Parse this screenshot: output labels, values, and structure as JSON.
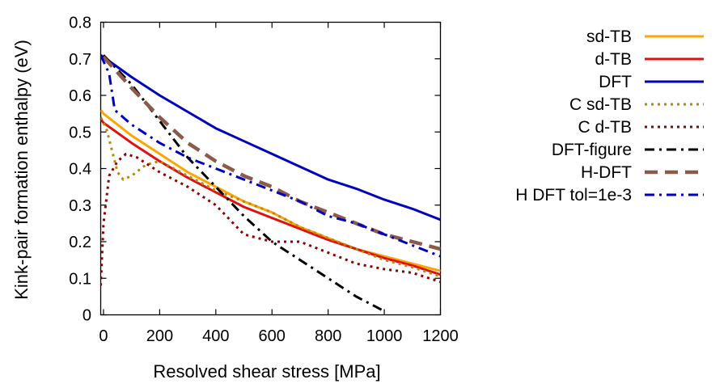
{
  "chart_data": {
    "type": "line",
    "xlabel": "Resolved shear stress [MPa]",
    "ylabel": "Kink-pair formation enthalpy (eV)",
    "xlim": [
      -10,
      1200
    ],
    "ylim": [
      0,
      0.8
    ],
    "xticks": [
      0,
      200,
      400,
      600,
      800,
      1000,
      1200
    ],
    "yticks": [
      0,
      0.1,
      0.2,
      0.3,
      0.4,
      0.5,
      0.6,
      0.7,
      0.8
    ],
    "xtick_labels": [
      "0",
      "200",
      "400",
      "600",
      "800",
      "1000",
      "1200"
    ],
    "ytick_labels": [
      "0",
      "0.1",
      "0.2",
      "0.3",
      "0.4",
      "0.5",
      "0.6",
      "0.7",
      "0.8"
    ],
    "legend_position": "right, outside plot",
    "series": [
      {
        "name": "sd-TB",
        "color": "#ffa500",
        "dash": "solid",
        "width": 3,
        "points": [
          [
            -10,
            0.56
          ],
          [
            0,
            0.55
          ],
          [
            100,
            0.49
          ],
          [
            200,
            0.44
          ],
          [
            300,
            0.39
          ],
          [
            400,
            0.35
          ],
          [
            500,
            0.31
          ],
          [
            600,
            0.28
          ],
          [
            700,
            0.24
          ],
          [
            800,
            0.21
          ],
          [
            900,
            0.18
          ],
          [
            1000,
            0.16
          ],
          [
            1100,
            0.14
          ],
          [
            1200,
            0.12
          ]
        ]
      },
      {
        "name": "d-TB",
        "color": "#e01010",
        "dash": "solid",
        "width": 3,
        "points": [
          [
            -10,
            0.535
          ],
          [
            0,
            0.525
          ],
          [
            100,
            0.47
          ],
          [
            200,
            0.42
          ],
          [
            300,
            0.375
          ],
          [
            400,
            0.335
          ],
          [
            500,
            0.295
          ],
          [
            600,
            0.265
          ],
          [
            700,
            0.235
          ],
          [
            800,
            0.205
          ],
          [
            900,
            0.18
          ],
          [
            1000,
            0.155
          ],
          [
            1100,
            0.135
          ],
          [
            1200,
            0.11
          ]
        ]
      },
      {
        "name": "DFT",
        "color": "#0000c0",
        "dash": "solid",
        "width": 3,
        "points": [
          [
            -10,
            0.71
          ],
          [
            0,
            0.705
          ],
          [
            100,
            0.65
          ],
          [
            200,
            0.6
          ],
          [
            300,
            0.555
          ],
          [
            400,
            0.51
          ],
          [
            500,
            0.475
          ],
          [
            600,
            0.44
          ],
          [
            700,
            0.405
          ],
          [
            800,
            0.37
          ],
          [
            900,
            0.345
          ],
          [
            1000,
            0.315
          ],
          [
            1100,
            0.29
          ],
          [
            1200,
            0.26
          ]
        ]
      },
      {
        "name": "C sd-TB",
        "color": "#b8860b",
        "dash": "dotted",
        "width": 3,
        "points": [
          [
            -10,
            0.54
          ],
          [
            10,
            0.51
          ],
          [
            30,
            0.45
          ],
          [
            50,
            0.39
          ],
          [
            70,
            0.37
          ],
          [
            100,
            0.38
          ],
          [
            150,
            0.41
          ],
          [
            200,
            0.42
          ],
          [
            300,
            0.38
          ],
          [
            400,
            0.34
          ],
          [
            500,
            0.31
          ],
          [
            600,
            0.28
          ],
          [
            700,
            0.24
          ],
          [
            800,
            0.21
          ],
          [
            900,
            0.18
          ],
          [
            1000,
            0.15
          ],
          [
            1100,
            0.13
          ],
          [
            1200,
            0.105
          ]
        ]
      },
      {
        "name": "C d-TB",
        "color": "#8b0000",
        "dash": "dotted",
        "width": 3,
        "points": [
          [
            -10,
            0.08
          ],
          [
            0,
            0.25
          ],
          [
            20,
            0.38
          ],
          [
            50,
            0.42
          ],
          [
            80,
            0.44
          ],
          [
            120,
            0.43
          ],
          [
            200,
            0.39
          ],
          [
            300,
            0.35
          ],
          [
            400,
            0.3
          ],
          [
            450,
            0.26
          ],
          [
            500,
            0.22
          ],
          [
            550,
            0.21
          ],
          [
            600,
            0.2
          ],
          [
            700,
            0.2
          ],
          [
            800,
            0.17
          ],
          [
            900,
            0.14
          ],
          [
            1000,
            0.125
          ],
          [
            1100,
            0.115
          ],
          [
            1200,
            0.09
          ]
        ]
      },
      {
        "name": "DFT-figure",
        "color": "#000000",
        "dash": "dashdot",
        "width": 3,
        "points": [
          [
            0,
            0.71
          ],
          [
            100,
            0.63
          ],
          [
            200,
            0.53
          ],
          [
            300,
            0.43
          ],
          [
            400,
            0.35
          ],
          [
            500,
            0.27
          ],
          [
            600,
            0.2
          ],
          [
            700,
            0.15
          ],
          [
            800,
            0.1
          ],
          [
            900,
            0.05
          ],
          [
            1000,
            0.01
          ]
        ]
      },
      {
        "name": "H-DFT",
        "color": "#8b5a4a",
        "dash": "dashed",
        "width": 4.5,
        "points": [
          [
            0,
            0.705
          ],
          [
            100,
            0.62
          ],
          [
            200,
            0.54
          ],
          [
            300,
            0.47
          ],
          [
            400,
            0.42
          ],
          [
            500,
            0.38
          ],
          [
            600,
            0.35
          ],
          [
            700,
            0.31
          ],
          [
            800,
            0.28
          ],
          [
            900,
            0.25
          ],
          [
            1000,
            0.22
          ],
          [
            1100,
            0.2
          ],
          [
            1200,
            0.18
          ]
        ]
      },
      {
        "name": "H DFT tol=1e-3",
        "color": "#0000c0",
        "dash": "dashdot",
        "width": 3,
        "points": [
          [
            -10,
            0.71
          ],
          [
            20,
            0.66
          ],
          [
            40,
            0.56
          ],
          [
            100,
            0.52
          ],
          [
            200,
            0.47
          ],
          [
            300,
            0.43
          ],
          [
            400,
            0.4
          ],
          [
            500,
            0.37
          ],
          [
            600,
            0.34
          ],
          [
            700,
            0.31
          ],
          [
            800,
            0.27
          ],
          [
            900,
            0.25
          ],
          [
            1000,
            0.22
          ],
          [
            1100,
            0.19
          ],
          [
            1200,
            0.16
          ]
        ]
      }
    ]
  }
}
